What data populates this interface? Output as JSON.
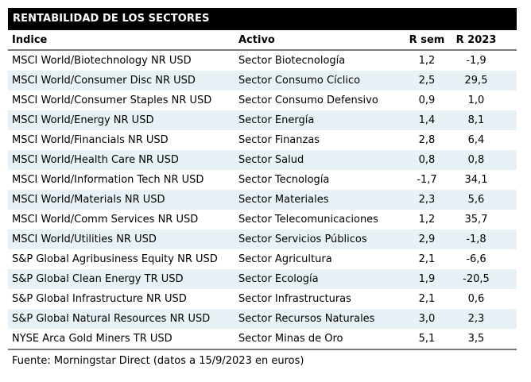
{
  "title": "RENTABILIDAD DE LOS SECTORES",
  "chart_data": {
    "type": "table",
    "title": "RENTABILIDAD DE LOS SECTORES",
    "columns": [
      "Índice",
      "Activo",
      "R sem",
      "R 2023"
    ],
    "rows": [
      [
        "MSCI World/Biotechnology NR USD",
        "Sector Biotecnología",
        "1,2",
        "-1,9"
      ],
      [
        "MSCI World/Consumer Disc NR USD",
        "Sector Consumo Cíclico",
        "2,5",
        "29,5"
      ],
      [
        "MSCI World/Consumer Staples NR USD",
        "Sector Consumo Defensivo",
        "0,9",
        "1,0"
      ],
      [
        "MSCI World/Energy NR USD",
        "Sector Energía",
        "1,4",
        "8,1"
      ],
      [
        "MSCI World/Financials NR USD",
        "Sector Finanzas",
        "2,8",
        "6,4"
      ],
      [
        "MSCI World/Health Care NR USD",
        "Sector Salud",
        "0,8",
        "0,8"
      ],
      [
        "MSCI World/Information Tech NR USD",
        "Sector Tecnología",
        "-1,7",
        "34,1"
      ],
      [
        "MSCI World/Materials NR USD",
        "Sector Materiales",
        "2,3",
        "5,6"
      ],
      [
        "MSCI World/Comm Services NR USD",
        "Sector Telecomunicaciones",
        "1,2",
        "35,7"
      ],
      [
        "MSCI World/Utilities NR USD",
        "Sector Servicios Públicos",
        "2,9",
        "-1,8"
      ],
      [
        "S&P Global Agribusiness Equity NR USD",
        "Sector Agricultura",
        "2,1",
        "-6,6"
      ],
      [
        "S&P Global Clean Energy TR USD",
        "Sector Ecología",
        "1,9",
        "-20,5"
      ],
      [
        "S&P Global Infrastructure NR USD",
        "Sector Infrastructuras",
        "2,1",
        "0,6"
      ],
      [
        "S&P Global Natural Resources NR USD",
        "Sector Recursos Naturales",
        "3,0",
        "2,3"
      ],
      [
        "NYSE Arca Gold Miners TR USD",
        "Sector Minas de Oro",
        "5,1",
        "3,5"
      ]
    ],
    "source_note": "Fuente: Morningstar Direct (datos a 15/9/2023 en euros)"
  },
  "colors": {
    "title_bar_bg": "#000000",
    "title_bar_text": "#ffffff",
    "row_alt_bg": "#e8f2f6",
    "rule_line": "#7a7a7a",
    "body_text": "#000000"
  }
}
